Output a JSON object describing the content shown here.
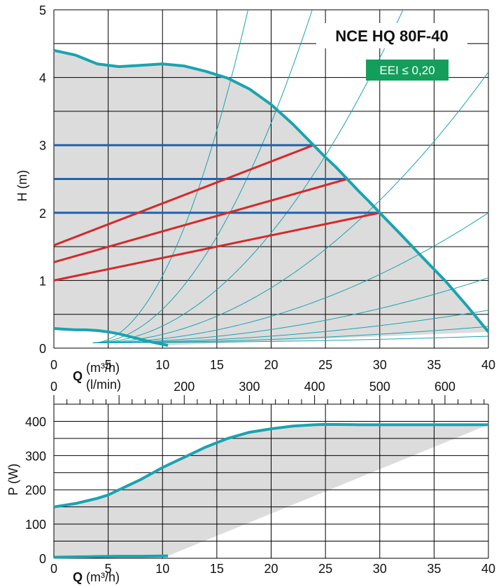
{
  "chart_data": [
    {
      "type": "line",
      "title": "NCE HQ 80F-40",
      "badge": "EEI ≤ 0,20",
      "xlabel": "Q",
      "xunit": "(m³/h)",
      "ylabel": "H (m)",
      "xlim": [
        0,
        40
      ],
      "ylim": [
        0,
        5
      ],
      "x_ticks": [
        "0",
        "5",
        "10",
        "15",
        "20",
        "25",
        "30",
        "35",
        "40"
      ],
      "y_ticks": [
        "0",
        "1",
        "2",
        "3",
        "4",
        "5"
      ],
      "secondary_xlabel": "(l/min)",
      "secondary_x_ticks": [
        "0",
        "200",
        "300",
        "400",
        "500",
        "600"
      ],
      "grid": true,
      "series": [
        {
          "role": "max-head curve",
          "color": "#1AA3B0",
          "x": [
            0,
            2,
            4,
            6,
            8,
            10,
            12,
            14,
            16,
            18,
            20,
            22,
            23.9,
            25,
            26,
            27,
            28,
            29,
            30,
            32,
            34,
            36,
            38,
            40
          ],
          "y": [
            4.4,
            4.33,
            4.2,
            4.16,
            4.18,
            4.2,
            4.17,
            4.09,
            3.99,
            3.83,
            3.6,
            3.31,
            3.0,
            2.82,
            2.67,
            2.5,
            2.33,
            2.17,
            2.0,
            1.67,
            1.33,
            1.0,
            0.63,
            0.24
          ]
        },
        {
          "role": "min curve",
          "color": "#1AA3B0",
          "x": [
            0,
            1,
            2,
            3,
            4,
            5,
            6,
            7,
            8,
            9,
            10.5
          ],
          "y": [
            0.29,
            0.28,
            0.27,
            0.27,
            0.26,
            0.24,
            0.21,
            0.17,
            0.13,
            0.09,
            0.04
          ]
        },
        {
          "role": "constant pressure",
          "color": "#1F63B0",
          "x": [
            0,
            23.9
          ],
          "y": [
            3.0,
            3.0
          ]
        },
        {
          "role": "constant pressure",
          "color": "#1F63B0",
          "x": [
            0,
            27
          ],
          "y": [
            2.5,
            2.5
          ]
        },
        {
          "role": "constant pressure",
          "color": "#1F63B0",
          "x": [
            0,
            30
          ],
          "y": [
            2.0,
            2.0
          ]
        },
        {
          "role": "proportional pressure",
          "color": "#D42A2A",
          "x": [
            0,
            23.9
          ],
          "y": [
            1.52,
            3.0
          ]
        },
        {
          "role": "proportional pressure",
          "color": "#D42A2A",
          "x": [
            0,
            27
          ],
          "y": [
            1.27,
            2.5
          ]
        },
        {
          "role": "proportional pressure",
          "color": "#D42A2A",
          "x": [
            0,
            30
          ],
          "y": [
            1.0,
            2.0
          ]
        }
      ],
      "system_curves_k": [
        2.0,
        1.0,
        0.5,
        0.25,
        0.12,
        0.06,
        0.03,
        0.015,
        0.006
      ],
      "system_curve_start": [
        0,
        0.08
      ],
      "shaded_region_fill": "#DCDCDC"
    },
    {
      "type": "line",
      "xlabel": "Q",
      "xunit": "(m³/h)",
      "ylabel": "P (W)",
      "xlim": [
        0,
        40
      ],
      "ylim": [
        0,
        450
      ],
      "x_ticks": [
        "0",
        "5",
        "10",
        "15",
        "20",
        "25",
        "30",
        "35",
        "40"
      ],
      "y_ticks": [
        "0",
        "100",
        "200",
        "300",
        "400"
      ],
      "grid": true,
      "series": [
        {
          "role": "max power curve",
          "color": "#1AA3B0",
          "x": [
            0,
            2,
            4,
            5,
            6,
            8,
            10,
            12,
            14,
            16,
            18,
            20,
            22,
            24,
            25,
            28,
            32,
            36,
            40
          ],
          "y": [
            150,
            160,
            175,
            185,
            200,
            230,
            265,
            295,
            325,
            350,
            368,
            378,
            386,
            390,
            391,
            390,
            390,
            390,
            390
          ]
        },
        {
          "role": "min power curve",
          "color": "#1AA3B0",
          "x": [
            0,
            2,
            4,
            6,
            8,
            10.5
          ],
          "y": [
            3,
            4,
            5,
            6,
            6,
            7
          ]
        }
      ],
      "shaded_region_fill": "#DCDCDC"
    }
  ]
}
